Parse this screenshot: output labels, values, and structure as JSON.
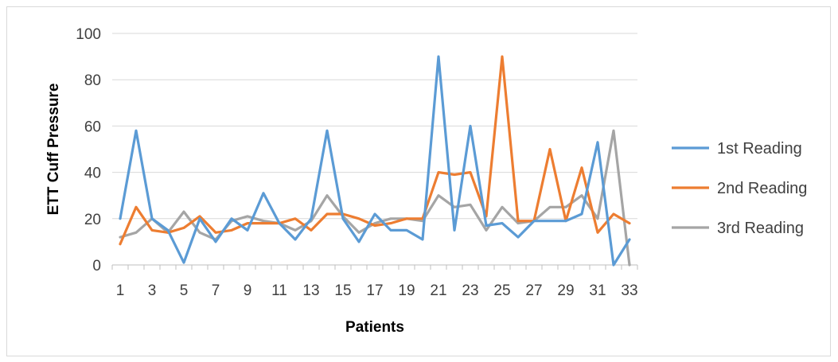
{
  "chart_data": {
    "type": "line",
    "title": "",
    "xlabel": "Patients",
    "ylabel": "ETT Cuff Pressure",
    "ylim": [
      0,
      100
    ],
    "yticks": [
      "0",
      "20",
      "40",
      "60",
      "80",
      "100"
    ],
    "x": [
      1,
      2,
      3,
      4,
      5,
      6,
      7,
      8,
      9,
      10,
      11,
      12,
      13,
      14,
      15,
      16,
      17,
      18,
      19,
      20,
      21,
      22,
      23,
      24,
      25,
      26,
      27,
      28,
      29,
      30,
      31,
      32,
      33
    ],
    "xtick_labels": [
      "1",
      "3",
      "5",
      "7",
      "9",
      "11",
      "13",
      "15",
      "17",
      "19",
      "21",
      "23",
      "25",
      "27",
      "29",
      "31",
      "33"
    ],
    "grid": "horizontal",
    "legend_position": "right",
    "series": [
      {
        "name": "1st Reading",
        "color": "#5b9bd5",
        "values": [
          20,
          58,
          20,
          15,
          1,
          20,
          10,
          20,
          15,
          31,
          18,
          11,
          20,
          58,
          20,
          10,
          22,
          15,
          15,
          11,
          90,
          15,
          60,
          17,
          18,
          12,
          19,
          19,
          19,
          22,
          53,
          0,
          11
        ]
      },
      {
        "name": "2nd Reading",
        "color": "#ed7d31",
        "values": [
          9,
          25,
          15,
          14,
          16,
          21,
          14,
          15,
          18,
          18,
          18,
          20,
          15,
          22,
          22,
          20,
          17,
          18,
          20,
          20,
          40,
          39,
          40,
          21,
          90,
          19,
          19,
          50,
          19,
          42,
          14,
          22,
          18
        ]
      },
      {
        "name": "3rd Reading",
        "color": "#a5a5a5",
        "values": [
          12,
          14,
          20,
          14,
          23,
          14,
          11,
          19,
          21,
          19,
          18,
          15,
          19,
          30,
          21,
          14,
          18,
          20,
          20,
          19,
          30,
          25,
          26,
          15,
          25,
          18,
          19,
          25,
          25,
          30,
          20,
          58,
          0
        ]
      }
    ]
  }
}
